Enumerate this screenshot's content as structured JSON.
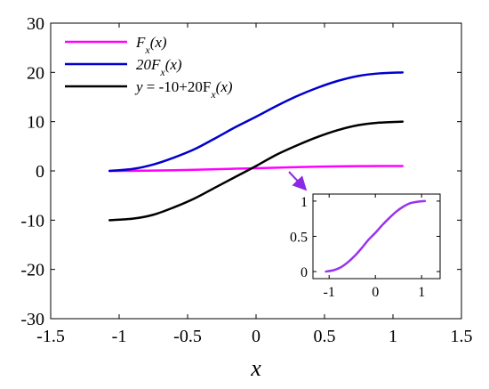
{
  "chart_data": {
    "type": "line",
    "xlabel": "x",
    "ylabel": "",
    "xlim": [
      -1.5,
      1.5
    ],
    "ylim": [
      -30,
      30
    ],
    "xticks": [
      -1.5,
      -1,
      -0.5,
      0,
      0.5,
      1,
      1.5
    ],
    "yticks": [
      -30,
      -20,
      -10,
      0,
      10,
      20,
      30
    ],
    "x_tick_labels": [
      "-1.5",
      "-1",
      "-0.5",
      "0",
      "0.5",
      "1",
      "1.5"
    ],
    "y_tick_labels": [
      "-30",
      "-20",
      "-10",
      "0",
      "10",
      "20",
      "30"
    ],
    "legend_position": "top-left",
    "grid": false,
    "x": [
      -1.07,
      -0.9,
      -0.75,
      -0.6,
      -0.45,
      -0.3,
      -0.15,
      0.0,
      0.15,
      0.3,
      0.45,
      0.6,
      0.75,
      0.9,
      1.07
    ],
    "series": [
      {
        "name": "Fx(x)",
        "legend_base": "F",
        "legend_sub": "x",
        "legend_suffix": "(x)",
        "color": "#ff00ff",
        "values": [
          0.0,
          0.02,
          0.06,
          0.13,
          0.22,
          0.33,
          0.45,
          0.55,
          0.66,
          0.76,
          0.85,
          0.92,
          0.97,
          0.99,
          1.0
        ]
      },
      {
        "name": "20Fx(x)",
        "legend_base": "20F",
        "legend_sub": "x",
        "legend_suffix": "(x)",
        "color": "#0000cc",
        "values": [
          0.0,
          0.4,
          1.3,
          2.7,
          4.4,
          6.6,
          8.9,
          11.0,
          13.2,
          15.2,
          16.9,
          18.3,
          19.3,
          19.8,
          20.0
        ]
      },
      {
        "name": "y = -10+20Fx(x)",
        "legend_base": "y",
        "legend_mid": " = -10+20F",
        "legend_sub": "x",
        "legend_suffix": "(x)",
        "color": "#000000",
        "values": [
          -10.0,
          -9.7,
          -8.9,
          -7.4,
          -5.6,
          -3.4,
          -1.2,
          1.0,
          3.3,
          5.2,
          6.9,
          8.3,
          9.3,
          9.8,
          10.0
        ]
      }
    ],
    "inset": {
      "type": "line",
      "xlim": [
        -1.35,
        1.4
      ],
      "ylim": [
        -0.1,
        1.1
      ],
      "xticks": [
        -1,
        0,
        1
      ],
      "yticks": [
        0,
        0.5,
        1
      ],
      "x_tick_labels": [
        "-1",
        "0",
        "1"
      ],
      "y_tick_labels": [
        "0",
        "0.5",
        "1"
      ],
      "color": "#9933ee",
      "arrow_color": "#8a2be2",
      "x": [
        -1.07,
        -0.9,
        -0.75,
        -0.6,
        -0.45,
        -0.3,
        -0.15,
        0.0,
        0.15,
        0.3,
        0.45,
        0.6,
        0.75,
        0.9,
        1.07
      ],
      "values": [
        0.0,
        0.02,
        0.06,
        0.13,
        0.22,
        0.33,
        0.45,
        0.55,
        0.66,
        0.76,
        0.85,
        0.92,
        0.97,
        0.99,
        1.0
      ]
    }
  }
}
